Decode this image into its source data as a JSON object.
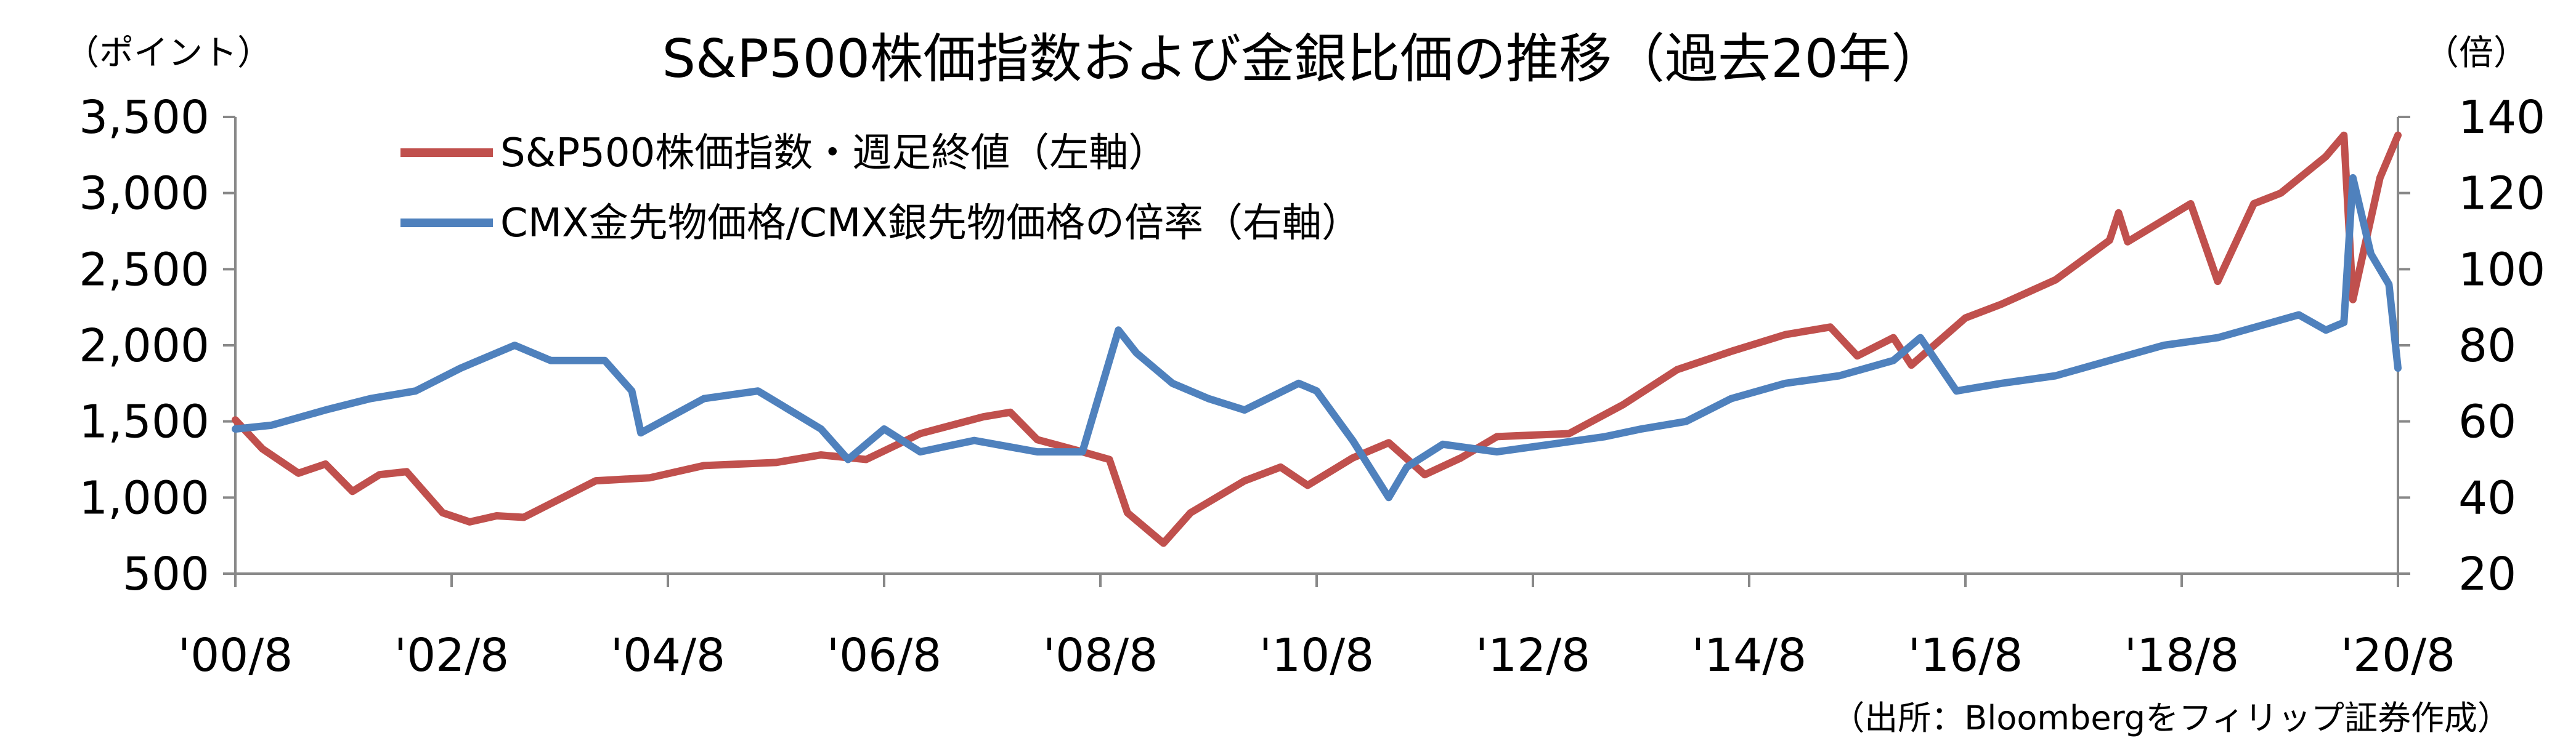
{
  "chart_data": {
    "type": "line",
    "title": "S&P500株価指数および金銀比価の推移（過去20年）",
    "left_unit": "（ポイント）",
    "right_unit": "（倍）",
    "source": "（出所：Bloombergをフィリップ証券作成）",
    "x_tick_labels": [
      "'00/8",
      "'02/8",
      "'04/8",
      "'06/8",
      "'08/8",
      "'10/8",
      "'12/8",
      "'14/8",
      "'16/8",
      "'18/8",
      "'20/8"
    ],
    "x_range": [
      "2000-08",
      "2020-08"
    ],
    "y_left": {
      "ylim": [
        500,
        3500
      ],
      "ticks": [
        500,
        1000,
        1500,
        2000,
        2500,
        3000,
        3500
      ],
      "tick_labels": [
        "500",
        "1,000",
        "1,500",
        "2,000",
        "2,500",
        "3,000",
        "3,500"
      ]
    },
    "y_right": {
      "ylim": [
        20,
        140
      ],
      "ticks": [
        20,
        40,
        60,
        80,
        100,
        120,
        140
      ],
      "tick_labels": [
        "20",
        "40",
        "60",
        "80",
        "100",
        "120",
        "140"
      ]
    },
    "grid": false,
    "legend_position": "top-left",
    "series": [
      {
        "name": "S&P500株価指数・週足終値（左軸）",
        "axis": "left",
        "color": "#C0504D",
        "x": [
          "2000-08",
          "2000-11",
          "2001-03",
          "2001-06",
          "2001-09",
          "2001-12",
          "2002-03",
          "2002-07",
          "2002-10",
          "2003-01",
          "2003-04",
          "2003-08",
          "2003-12",
          "2004-06",
          "2004-12",
          "2005-08",
          "2006-01",
          "2006-06",
          "2006-12",
          "2007-07",
          "2007-10",
          "2008-01",
          "2008-06",
          "2008-09",
          "2008-11",
          "2009-03",
          "2009-06",
          "2009-12",
          "2010-04",
          "2010-07",
          "2010-12",
          "2011-04",
          "2011-08",
          "2011-12",
          "2012-04",
          "2012-08",
          "2012-12",
          "2013-06",
          "2013-12",
          "2014-06",
          "2014-12",
          "2015-05",
          "2015-08",
          "2015-12",
          "2016-02",
          "2016-08",
          "2016-12",
          "2017-06",
          "2017-12",
          "2018-01",
          "2018-02",
          "2018-09",
          "2018-12",
          "2019-04",
          "2019-07",
          "2019-12",
          "2020-02",
          "2020-03",
          "2020-06",
          "2020-08"
        ],
        "y": [
          1510,
          1320,
          1160,
          1220,
          1040,
          1150,
          1170,
          900,
          840,
          880,
          870,
          990,
          1110,
          1130,
          1210,
          1230,
          1280,
          1250,
          1420,
          1530,
          1560,
          1380,
          1300,
          1250,
          900,
          700,
          900,
          1110,
          1200,
          1080,
          1260,
          1360,
          1150,
          1260,
          1400,
          1410,
          1420,
          1610,
          1840,
          1960,
          2070,
          2120,
          1930,
          2050,
          1870,
          2180,
          2270,
          2430,
          2690,
          2870,
          2680,
          2930,
          2420,
          2930,
          3000,
          3240,
          3380,
          2300,
          3100,
          3380
        ]
      },
      {
        "name": "CMX金先物価格/CMX銀先物価格の倍率（右軸）",
        "axis": "right",
        "color": "#4F81BD",
        "x": [
          "2000-08",
          "2000-12",
          "2001-06",
          "2001-11",
          "2002-04",
          "2002-09",
          "2003-03",
          "2003-07",
          "2004-01",
          "2004-04",
          "2004-05",
          "2004-12",
          "2005-06",
          "2006-01",
          "2006-04",
          "2006-08",
          "2006-12",
          "2007-06",
          "2008-01",
          "2008-06",
          "2008-10",
          "2008-12",
          "2009-04",
          "2009-08",
          "2009-12",
          "2010-06",
          "2010-08",
          "2010-12",
          "2011-04",
          "2011-06",
          "2011-10",
          "2012-04",
          "2012-10",
          "2013-04",
          "2013-08",
          "2014-01",
          "2014-06",
          "2014-12",
          "2015-06",
          "2015-12",
          "2016-03",
          "2016-07",
          "2016-12",
          "2017-06",
          "2017-12",
          "2018-06",
          "2018-12",
          "2019-06",
          "2019-09",
          "2019-12",
          "2020-02",
          "2020-03",
          "2020-05",
          "2020-07",
          "2020-08"
        ],
        "y": [
          58,
          59,
          63,
          66,
          68,
          74,
          80,
          76,
          76,
          68,
          57,
          66,
          68,
          58,
          50,
          58,
          52,
          55,
          52,
          52,
          84,
          78,
          70,
          66,
          63,
          70,
          68,
          55,
          40,
          48,
          54,
          52,
          54,
          56,
          58,
          60,
          66,
          70,
          72,
          76,
          82,
          68,
          70,
          72,
          76,
          80,
          82,
          86,
          88,
          84,
          86,
          124,
          104,
          96,
          74
        ]
      }
    ]
  }
}
